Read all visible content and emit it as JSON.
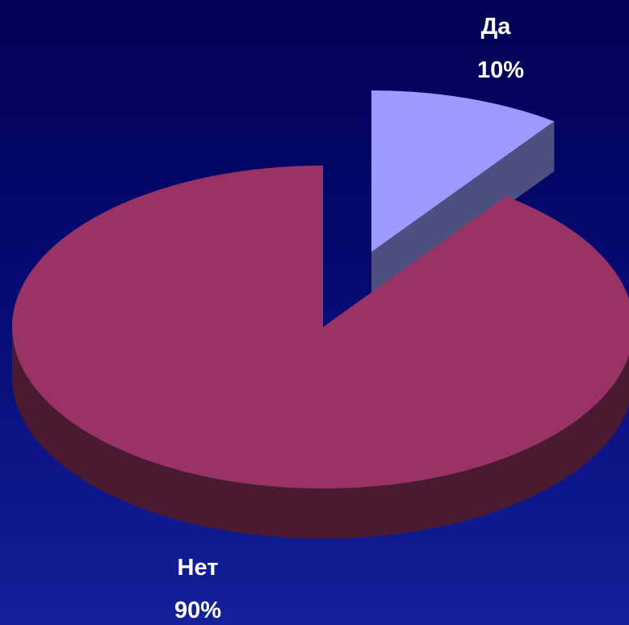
{
  "chart_data": {
    "type": "pie",
    "title": "",
    "style": "3d-exploded",
    "legend": "none",
    "slices": [
      {
        "label": "Да",
        "value_label": "10%",
        "value": 10,
        "color": "#9b9bff",
        "side_color": "#4e4e80"
      },
      {
        "label": "Нет",
        "value_label": "90%",
        "value": 90,
        "color": "#993366",
        "side_color": "#4a1a30"
      }
    ]
  }
}
